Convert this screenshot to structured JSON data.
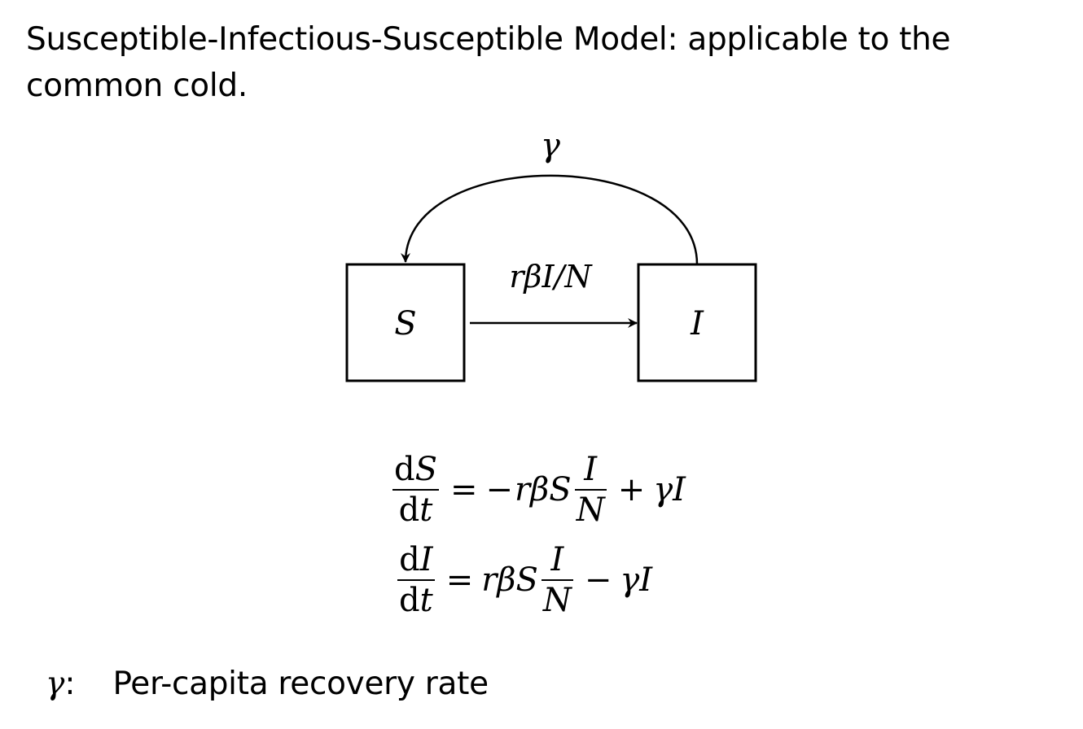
{
  "title": "Susceptible-Infectious-Susceptible Model: applicable to the common cold.",
  "diagram": {
    "nodes": [
      {
        "id": "S",
        "label": "S"
      },
      {
        "id": "I",
        "label": "I"
      }
    ],
    "edges": [
      {
        "from": "S",
        "to": "I",
        "label": "rβI/N"
      },
      {
        "from": "I",
        "to": "S",
        "label": "γ"
      }
    ]
  },
  "equations": {
    "eq1": {
      "lhs_num_d": "d",
      "lhs_num_var": "S",
      "lhs_den_d": "d",
      "lhs_den_var": "t",
      "equals": "=",
      "minus": "−",
      "rb": "rβS",
      "frac_num": "I",
      "frac_den": "N",
      "plus": "+",
      "tail": "γI"
    },
    "eq2": {
      "lhs_num_d": "d",
      "lhs_num_var": "I",
      "lhs_den_d": "d",
      "lhs_den_var": "t",
      "equals": "=",
      "rb": "rβS",
      "frac_num": "I",
      "frac_den": "N",
      "minus": "−",
      "tail": "γI"
    }
  },
  "legend": [
    {
      "symbol": "γ",
      "colon": ":",
      "description": "Per-capita recovery rate"
    }
  ]
}
